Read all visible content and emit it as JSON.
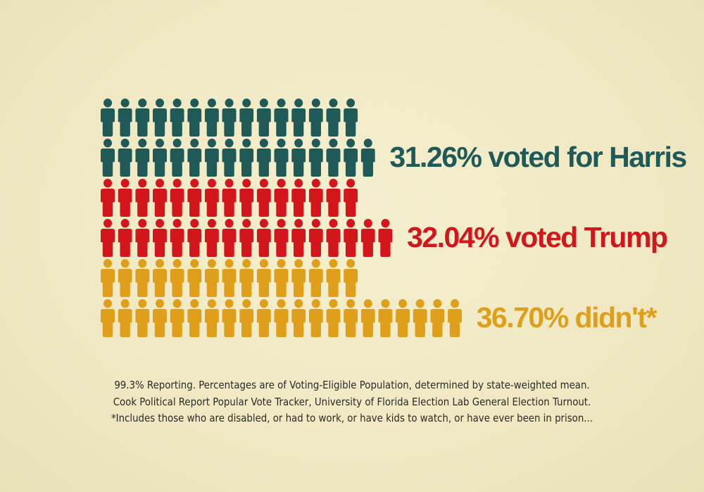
{
  "chart_data": {
    "type": "pictograph",
    "series": [
      {
        "name": "31.26% voted for Harris",
        "value": 31.26,
        "color": "#1f5a58",
        "icons_per_row": [
          15,
          16
        ]
      },
      {
        "name": "32.04% voted Trump",
        "value": 32.04,
        "color": "#d2161b",
        "icons_per_row": [
          15,
          17
        ]
      },
      {
        "name": "36.70% didn't*",
        "value": 36.7,
        "color": "#e09f1a",
        "icons_per_row": [
          15,
          21
        ]
      }
    ],
    "icon": "person-icon"
  },
  "footnote": {
    "line1": "99.3% Reporting. Percentages are of Voting-Eligible Population, determined by state-weighted mean.",
    "line2": "Cook Political Report Popular Vote Tracker, University of Florida Election Lab General Election Turnout.",
    "line3": "*Includes those who are disabled, or had to work, or have kids to watch, or have ever been in prison..."
  }
}
